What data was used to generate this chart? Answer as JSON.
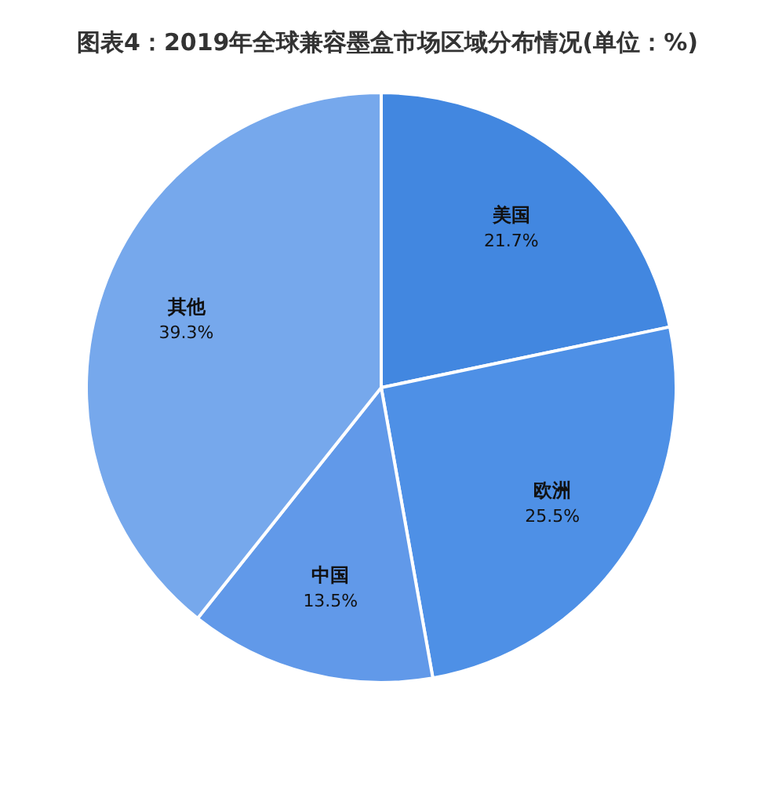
{
  "chart_data": {
    "type": "pie",
    "title": "图表4：2019年全球兼容墨盒市场区域分布情况(单位：%)",
    "categories": [
      "美国",
      "欧洲",
      "中国",
      "其他"
    ],
    "values": [
      21.7,
      25.5,
      13.5,
      39.3
    ],
    "value_labels": [
      "21.7%",
      "25.5%",
      "13.5%",
      "39.3%"
    ],
    "colors": [
      "#4287e0",
      "#4e90e6",
      "#6199e9",
      "#76a8ec"
    ]
  }
}
